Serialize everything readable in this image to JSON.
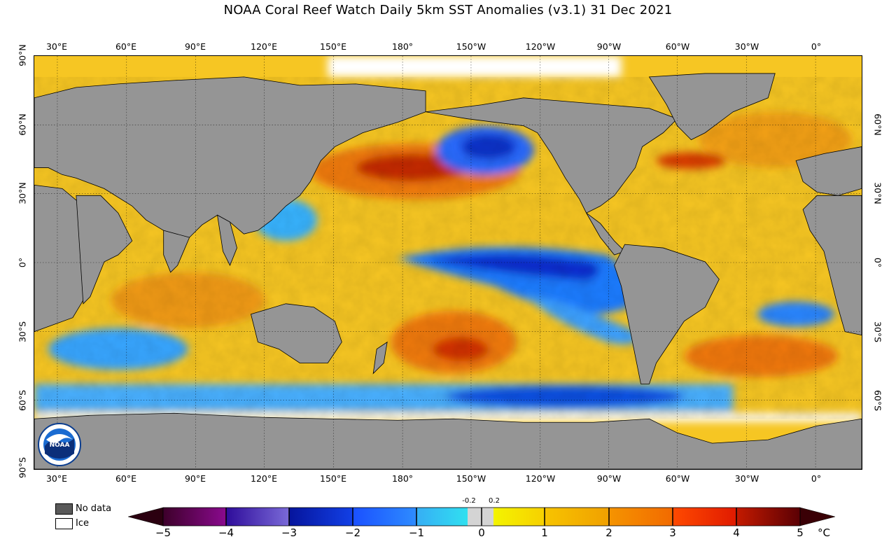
{
  "title": "NOAA Coral Reef Watch Daily 5km SST Anomalies  (v3.1)   31 Dec 2021",
  "lon_ticks": [
    "30°E",
    "60°E",
    "90°E",
    "120°E",
    "150°E",
    "180°",
    "150°W",
    "120°W",
    "90°W",
    "60°W",
    "30°W",
    "0°"
  ],
  "lat_ticks_left": [
    "90°N",
    "60°N",
    "30°N",
    "0°",
    "30°S",
    "60°S",
    "90°S"
  ],
  "lat_ticks_right": [
    "60°N",
    "30°N",
    "0°",
    "30°S",
    "60°S"
  ],
  "legend": {
    "no_data_label": "No data",
    "ice_label": "Ice"
  },
  "colorbar": {
    "labels": [
      "−5",
      "−4",
      "−3",
      "−2",
      "−1",
      "0",
      "1",
      "2",
      "3",
      "4",
      "5"
    ],
    "inner_labels": [
      "-0.2",
      "0.2"
    ],
    "unit": "°C",
    "colors": {
      "minus5": "#2b0010",
      "minus4": "#5a0a6e",
      "minus3": "#3a2ca0",
      "minus2": "#0a1eb4",
      "minus1": "#1e6cff",
      "minus02": "#2fd0f5",
      "neutral": "#d4d4d4",
      "plus02": "#f5f000",
      "plus1": "#f7c800",
      "plus2": "#f39a00",
      "plus3": "#f04a00",
      "plus4": "#c81800",
      "plus5": "#3a0006"
    }
  },
  "map_colors": {
    "land": "#9a9a9a",
    "ocean_warm": "#f6c823",
    "ice": "#ffffff"
  },
  "logo_text": "NOAA"
}
